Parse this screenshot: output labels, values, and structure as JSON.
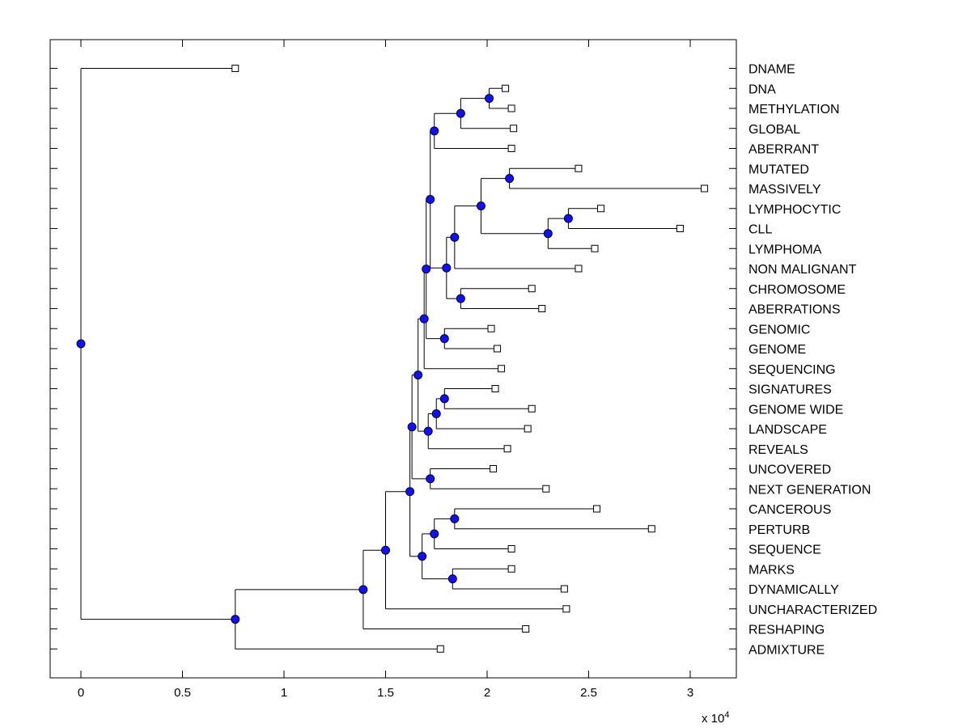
{
  "chart_data": {
    "type": "dendrogram",
    "title": "",
    "xlabel": "",
    "ylabel": "",
    "x_multiplier": "x 10",
    "x_multiplier_exponent": "4",
    "xlim": [
      -0.15,
      3.23
    ],
    "xticks": [
      0,
      0.5,
      1,
      1.5,
      2,
      2.5,
      3
    ],
    "xtick_labels": [
      "0",
      "0.5",
      "1",
      "1.5",
      "2",
      "2.5",
      "3"
    ],
    "leaf_color": "#ffffff",
    "node_color": "#1010ff",
    "leaves": [
      {
        "id": "dname",
        "label": "DNAME",
        "x": 0.76
      },
      {
        "id": "dna",
        "label": "DNA",
        "x": 2.09
      },
      {
        "id": "methylation",
        "label": "METHYLATION",
        "x": 2.12
      },
      {
        "id": "global",
        "label": "GLOBAL",
        "x": 2.13
      },
      {
        "id": "aberrant",
        "label": "ABERRANT",
        "x": 2.12
      },
      {
        "id": "mutated",
        "label": "MUTATED",
        "x": 2.45
      },
      {
        "id": "massively",
        "label": "MASSIVELY",
        "x": 3.07
      },
      {
        "id": "lymphocytic",
        "label": "LYMPHOCYTIC",
        "x": 2.56
      },
      {
        "id": "cll",
        "label": "CLL",
        "x": 2.95
      },
      {
        "id": "lymphoma",
        "label": "LYMPHOMA",
        "x": 2.53
      },
      {
        "id": "nonmalignant",
        "label": "NON MALIGNANT",
        "x": 2.45
      },
      {
        "id": "chromosome",
        "label": "CHROMOSOME",
        "x": 2.22
      },
      {
        "id": "aberrations",
        "label": "ABERRATIONS",
        "x": 2.27
      },
      {
        "id": "genomic",
        "label": "GENOMIC",
        "x": 2.02
      },
      {
        "id": "genome",
        "label": "GENOME",
        "x": 2.05
      },
      {
        "id": "sequencing",
        "label": "SEQUENCING",
        "x": 2.07
      },
      {
        "id": "signatures",
        "label": "SIGNATURES",
        "x": 2.04
      },
      {
        "id": "genomewide",
        "label": "GENOME WIDE",
        "x": 2.22
      },
      {
        "id": "landscape",
        "label": "LANDSCAPE",
        "x": 2.2
      },
      {
        "id": "reveals",
        "label": "REVEALS",
        "x": 2.1
      },
      {
        "id": "uncovered",
        "label": "UNCOVERED",
        "x": 2.03
      },
      {
        "id": "nextgeneration",
        "label": "NEXT GENERATION",
        "x": 2.29
      },
      {
        "id": "cancerous",
        "label": "CANCEROUS",
        "x": 2.54
      },
      {
        "id": "perturb",
        "label": "PERTURB",
        "x": 2.81
      },
      {
        "id": "sequence",
        "label": "SEQUENCE",
        "x": 2.12
      },
      {
        "id": "marks",
        "label": "MARKS",
        "x": 2.12
      },
      {
        "id": "dynamically",
        "label": "DYNAMICALLY",
        "x": 2.38
      },
      {
        "id": "uncharacterized",
        "label": "UNCHARACTERIZED",
        "x": 2.39
      },
      {
        "id": "reshaping",
        "label": "RESHAPING",
        "x": 2.19
      },
      {
        "id": "admixture",
        "label": "ADMIXTURE",
        "x": 1.77
      }
    ],
    "internal_nodes": [
      {
        "id": "n_dna_meth",
        "x": 2.01,
        "children": [
          "dna",
          "methylation"
        ]
      },
      {
        "id": "n_a",
        "x": 1.87,
        "children": [
          "n_dna_meth",
          "global"
        ]
      },
      {
        "id": "n_b",
        "x": 1.74,
        "children": [
          "n_a",
          "aberrant"
        ]
      },
      {
        "id": "n_mut_mass",
        "x": 2.11,
        "children": [
          "mutated",
          "massively"
        ]
      },
      {
        "id": "n_lym_cll",
        "x": 2.4,
        "children": [
          "lymphocytic",
          "cll"
        ]
      },
      {
        "id": "n_c",
        "x": 2.3,
        "children": [
          "n_lym_cll",
          "lymphoma"
        ]
      },
      {
        "id": "n_d",
        "x": 1.97,
        "children": [
          "n_mut_mass",
          "n_c"
        ]
      },
      {
        "id": "n_e",
        "x": 1.84,
        "children": [
          "n_d",
          "nonmalignant"
        ]
      },
      {
        "id": "n_chr_ab",
        "x": 1.87,
        "children": [
          "chromosome",
          "aberrations"
        ]
      },
      {
        "id": "n_f",
        "x": 1.8,
        "children": [
          "n_e",
          "n_chr_ab"
        ]
      },
      {
        "id": "n_g",
        "x": 1.72,
        "children": [
          "n_b",
          "n_f"
        ]
      },
      {
        "id": "n_gen",
        "x": 1.79,
        "children": [
          "genomic",
          "genome"
        ]
      },
      {
        "id": "n_h",
        "x": 1.7,
        "children": [
          "n_g",
          "n_gen"
        ]
      },
      {
        "id": "n_i",
        "x": 1.69,
        "children": [
          "n_h",
          "sequencing"
        ]
      },
      {
        "id": "n_sig_gw",
        "x": 1.79,
        "children": [
          "signatures",
          "genomewide"
        ]
      },
      {
        "id": "n_j",
        "x": 1.75,
        "children": [
          "n_sig_gw",
          "landscape"
        ]
      },
      {
        "id": "n_k",
        "x": 1.71,
        "children": [
          "n_j",
          "reveals"
        ]
      },
      {
        "id": "n_l",
        "x": 1.66,
        "children": [
          "n_i",
          "n_k"
        ]
      },
      {
        "id": "n_unc_ng",
        "x": 1.72,
        "children": [
          "uncovered",
          "nextgeneration"
        ]
      },
      {
        "id": "n_m",
        "x": 1.63,
        "children": [
          "n_l",
          "n_unc_ng"
        ]
      },
      {
        "id": "n_can_per",
        "x": 1.84,
        "children": [
          "cancerous",
          "perturb"
        ]
      },
      {
        "id": "n_n",
        "x": 1.74,
        "children": [
          "n_can_per",
          "sequence"
        ]
      },
      {
        "id": "n_mk_dyn",
        "x": 1.83,
        "children": [
          "marks",
          "dynamically"
        ]
      },
      {
        "id": "n_o",
        "x": 1.68,
        "children": [
          "n_n",
          "n_mk_dyn"
        ]
      },
      {
        "id": "n_p",
        "x": 1.62,
        "children": [
          "n_m",
          "n_o"
        ]
      },
      {
        "id": "n_q",
        "x": 1.5,
        "children": [
          "n_p",
          "uncharacterized"
        ]
      },
      {
        "id": "n_r",
        "x": 1.39,
        "children": [
          "n_q",
          "reshaping"
        ]
      },
      {
        "id": "n_s",
        "x": 0.76,
        "children": [
          "n_r",
          "admixture"
        ]
      },
      {
        "id": "root",
        "x": 0.0,
        "children": [
          "dname",
          "n_s"
        ]
      }
    ]
  }
}
